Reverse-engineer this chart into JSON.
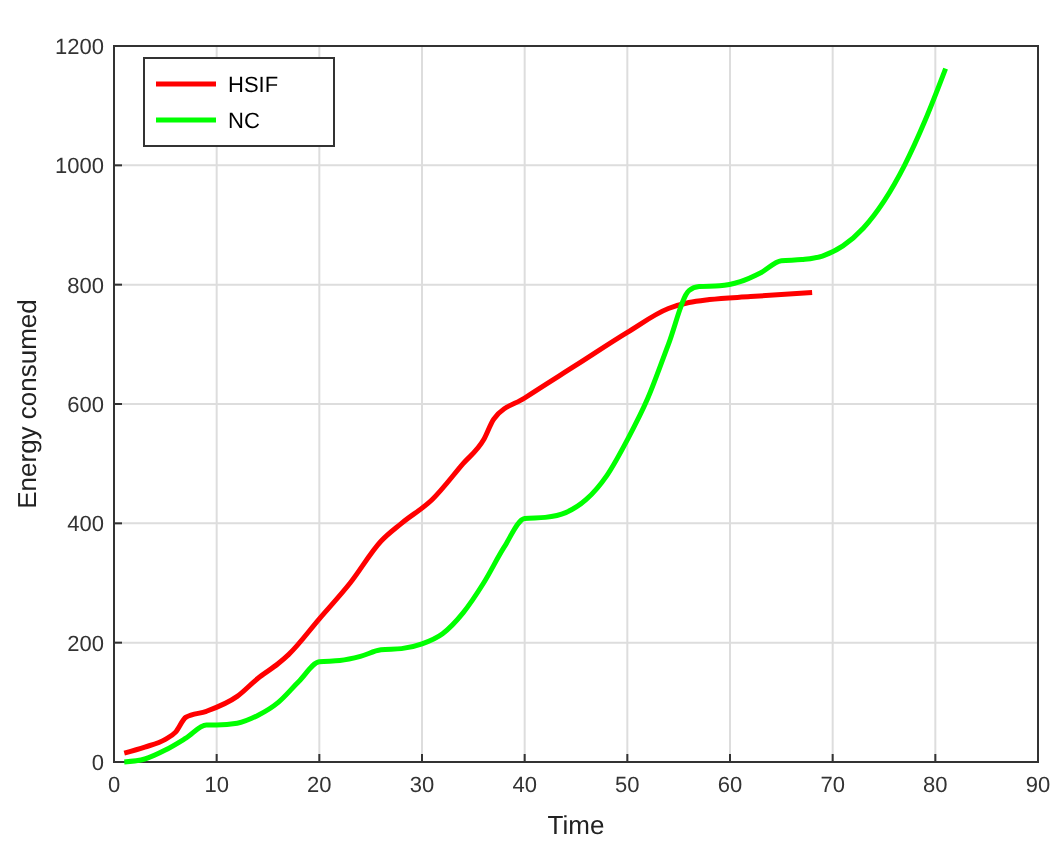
{
  "chart_data": {
    "type": "line",
    "xlabel": "Time",
    "ylabel": "Energy consumed",
    "xlim": [
      0,
      90
    ],
    "ylim": [
      0,
      1200
    ],
    "xticks": [
      0,
      10,
      20,
      30,
      40,
      50,
      60,
      70,
      80,
      90
    ],
    "yticks": [
      0,
      200,
      400,
      600,
      800,
      1000,
      1200
    ],
    "grid": true,
    "legend": "top left",
    "marker": "none",
    "line_style": "solid",
    "series": [
      {
        "name": "HSIF",
        "color": "#ff0000",
        "x": [
          1,
          3,
          5,
          6,
          7,
          9,
          12,
          14,
          16,
          17,
          20,
          23,
          26,
          28,
          31,
          34,
          36,
          37,
          40,
          45,
          50,
          54,
          56,
          58,
          62,
          68
        ],
        "values": [
          15,
          25,
          38,
          50,
          75,
          85,
          110,
          140,
          165,
          180,
          240,
          300,
          370,
          400,
          440,
          500,
          540,
          575,
          610,
          665,
          720,
          760,
          770,
          775,
          780,
          787
        ]
      },
      {
        "name": "NC",
        "color": "#00ff00",
        "x": [
          1,
          3,
          5,
          7,
          9,
          10,
          12,
          14,
          16,
          18,
          20,
          22,
          24,
          26,
          28,
          30,
          32,
          34,
          36,
          38,
          40,
          42,
          44,
          46,
          48,
          50,
          52,
          54,
          56,
          57,
          59,
          61,
          63,
          65,
          67,
          69,
          71,
          73,
          75,
          77,
          79,
          81
        ],
        "values": [
          0,
          5,
          20,
          40,
          62,
          62,
          65,
          78,
          100,
          135,
          168,
          170,
          177,
          188,
          190,
          198,
          215,
          250,
          300,
          360,
          408,
          410,
          418,
          440,
          480,
          540,
          610,
          700,
          790,
          797,
          798,
          805,
          820,
          840,
          842,
          848,
          865,
          895,
          940,
          1000,
          1075,
          1162
        ]
      }
    ]
  }
}
